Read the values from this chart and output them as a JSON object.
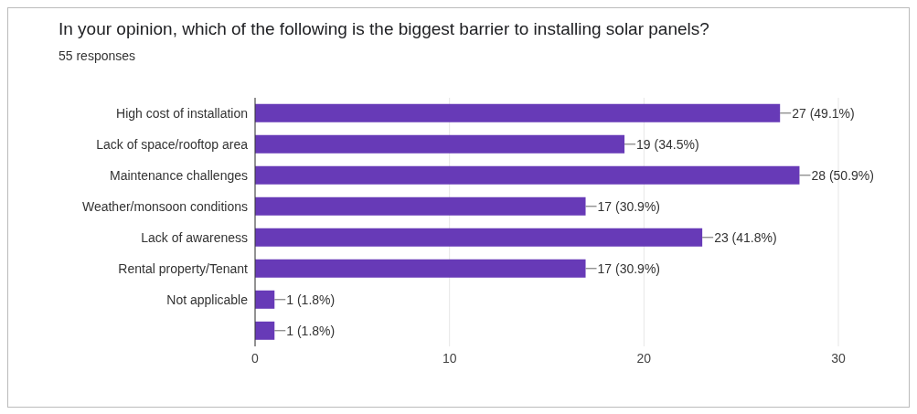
{
  "chart_data": {
    "type": "bar",
    "orientation": "horizontal",
    "title": "In your opinion, which of the following is the biggest barrier to installing solar panels?",
    "subtitle": "55 responses",
    "categories": [
      "High cost of installation",
      "Lack of space/rooftop area",
      "Maintenance challenges",
      "Weather/monsoon conditions",
      "Lack of awareness",
      "Rental property/Tenant",
      "Not applicable",
      null
    ],
    "values": [
      27,
      19,
      28,
      17,
      23,
      17,
      1,
      1
    ],
    "value_labels": [
      "27 (49.1%)",
      "19 (34.5%)",
      "28 (50.9%)",
      "17 (30.9%)",
      "23 (41.8%)",
      "17 (30.9%)",
      "1 (1.8%)",
      "1 (1.8%)"
    ],
    "color": "#673ab7",
    "xlim": [
      0,
      30
    ],
    "xticks": [
      0,
      10,
      20,
      30
    ],
    "grid": "x"
  }
}
